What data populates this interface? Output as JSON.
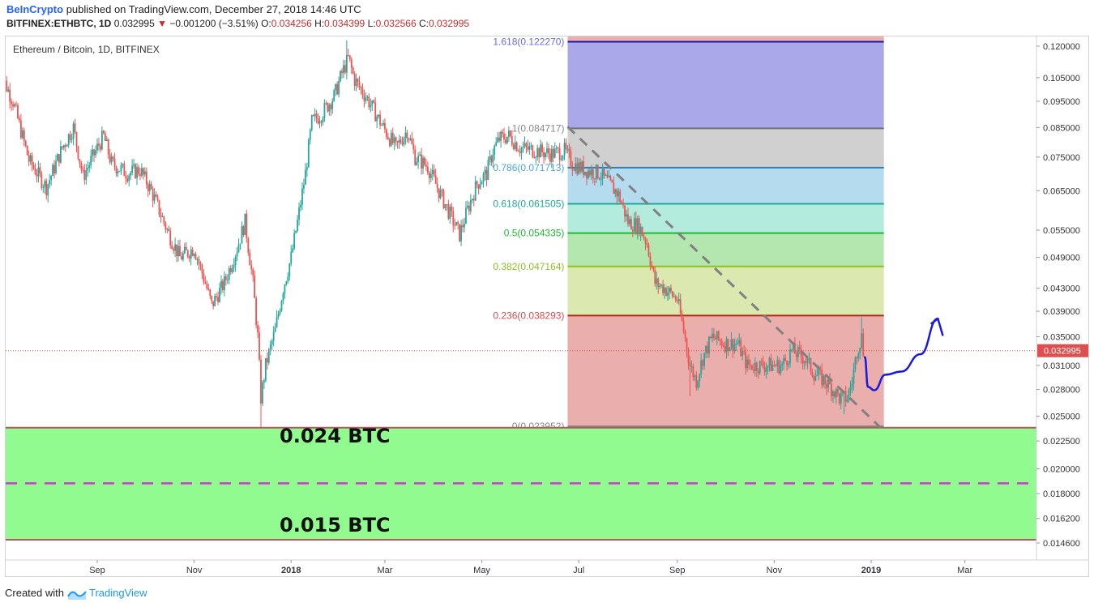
{
  "header": {
    "publisher": "BeInCrypto",
    "published_text": "published on TradingView.com, December 27, 2018 14:46 UTC",
    "symbol": "BITFINEX:ETHBTC, 1D",
    "last": "0.032995",
    "change": "−0.001200 (−3.51%)",
    "open_label": "O:",
    "open": "0.034256",
    "high_label": "H:",
    "high": "0.034399",
    "low_label": "L:",
    "low": "0.032566",
    "close_label": "C:",
    "close": "0.032995"
  },
  "footer": {
    "created_with": "Created with",
    "brand": "TradingView"
  },
  "chart_data": {
    "type": "candlestick",
    "title": "Ethereum / Bitcoin, 1D, BITFINEX",
    "x_tick_labels": [
      "Sep",
      "Nov",
      "2018",
      "Mar",
      "May",
      "Jul",
      "Sep",
      "Nov",
      "2019",
      "Mar"
    ],
    "y_scale": "log",
    "y_range": [
      0.0138,
      0.128
    ],
    "y_tick_labels": [
      "0.120000",
      "0.105000",
      "0.095000",
      "0.085000",
      "0.075000",
      "0.065000",
      "0.055000",
      "0.049000",
      "0.043000",
      "0.039000",
      "0.035000",
      "0.031000",
      "0.028000",
      "0.025000",
      "0.022500",
      "0.020000",
      "0.018000",
      "0.016200",
      "0.014600"
    ],
    "y_tick_values": [
      0.12,
      0.105,
      0.095,
      0.085,
      0.075,
      0.065,
      0.055,
      0.049,
      0.043,
      0.039,
      0.035,
      0.031,
      0.028,
      0.025,
      0.0225,
      0.02,
      0.018,
      0.0162,
      0.0146
    ],
    "last_price_label": "0.032995",
    "last_price": 0.032995,
    "price_path": [
      [
        "2017-07-01",
        0.109
      ],
      [
        "2017-07-10",
        0.095
      ],
      [
        "2017-07-20",
        0.074
      ],
      [
        "2017-07-31",
        0.066
      ],
      [
        "2017-08-10",
        0.078
      ],
      [
        "2017-08-17",
        0.085
      ],
      [
        "2017-08-23",
        0.069
      ],
      [
        "2017-09-01",
        0.078
      ],
      [
        "2017-09-05",
        0.082
      ],
      [
        "2017-09-10",
        0.073
      ],
      [
        "2017-09-20",
        0.07
      ],
      [
        "2017-09-28",
        0.071
      ],
      [
        "2017-10-05",
        0.065
      ],
      [
        "2017-10-15",
        0.055
      ],
      [
        "2017-10-23",
        0.049
      ],
      [
        "2017-11-01",
        0.051
      ],
      [
        "2017-11-08",
        0.044
      ],
      [
        "2017-11-12",
        0.04
      ],
      [
        "2017-11-20",
        0.044
      ],
      [
        "2017-11-28",
        0.051
      ],
      [
        "2017-12-03",
        0.057
      ],
      [
        "2017-12-08",
        0.044
      ],
      [
        "2017-12-11",
        0.035
      ],
      [
        "2017-12-13",
        0.027
      ],
      [
        "2017-12-16",
        0.031
      ],
      [
        "2017-12-22",
        0.036
      ],
      [
        "2017-12-27",
        0.043
      ],
      [
        "2018-01-01",
        0.049
      ],
      [
        "2018-01-05",
        0.057
      ],
      [
        "2018-01-10",
        0.07
      ],
      [
        "2018-01-14",
        0.087
      ],
      [
        "2018-01-20",
        0.09
      ],
      [
        "2018-01-28",
        0.097
      ],
      [
        "2018-02-02",
        0.107
      ],
      [
        "2018-02-06",
        0.114
      ],
      [
        "2018-02-10",
        0.104
      ],
      [
        "2018-02-18",
        0.096
      ],
      [
        "2018-02-28",
        0.085
      ],
      [
        "2018-03-08",
        0.078
      ],
      [
        "2018-03-15",
        0.084
      ],
      [
        "2018-03-20",
        0.075
      ],
      [
        "2018-03-28",
        0.072
      ],
      [
        "2018-04-05",
        0.064
      ],
      [
        "2018-04-12",
        0.058
      ],
      [
        "2018-04-17",
        0.054
      ],
      [
        "2018-04-22",
        0.06
      ],
      [
        "2018-04-28",
        0.067
      ],
      [
        "2018-05-04",
        0.07
      ],
      [
        "2018-05-08",
        0.077
      ],
      [
        "2018-05-12",
        0.081
      ],
      [
        "2018-05-18",
        0.082
      ],
      [
        "2018-05-25",
        0.078
      ],
      [
        "2018-06-05",
        0.077
      ],
      [
        "2018-06-14",
        0.076
      ],
      [
        "2018-06-22",
        0.077
      ],
      [
        "2018-06-27",
        0.073
      ],
      [
        "2018-07-05",
        0.071
      ],
      [
        "2018-07-14",
        0.07
      ],
      [
        "2018-07-20",
        0.067
      ],
      [
        "2018-07-26",
        0.064
      ],
      [
        "2018-08-01",
        0.057
      ],
      [
        "2018-08-08",
        0.056
      ],
      [
        "2018-08-13",
        0.052
      ],
      [
        "2018-08-18",
        0.044
      ],
      [
        "2018-08-24",
        0.043
      ],
      [
        "2018-09-01",
        0.041
      ],
      [
        "2018-09-05",
        0.036
      ],
      [
        "2018-09-09",
        0.031
      ],
      [
        "2018-09-13",
        0.029
      ],
      [
        "2018-09-17",
        0.032
      ],
      [
        "2018-09-23",
        0.035
      ],
      [
        "2018-10-01",
        0.034
      ],
      [
        "2018-10-09",
        0.034
      ],
      [
        "2018-10-15",
        0.031
      ],
      [
        "2018-10-28",
        0.031
      ],
      [
        "2018-11-06",
        0.031
      ],
      [
        "2018-11-12",
        0.033
      ],
      [
        "2018-11-20",
        0.032
      ],
      [
        "2018-11-26",
        0.03
      ],
      [
        "2018-12-03",
        0.029
      ],
      [
        "2018-12-08",
        0.028
      ],
      [
        "2018-12-12",
        0.027
      ],
      [
        "2018-12-17",
        0.027
      ],
      [
        "2018-12-20",
        0.029
      ],
      [
        "2018-12-23",
        0.033
      ],
      [
        "2018-12-26",
        0.035
      ],
      [
        "2018-12-27",
        0.033
      ]
    ],
    "price_extremes": [
      {
        "date": "2017-12-13",
        "low": 0.0239
      },
      {
        "date": "2018-02-05",
        "high": 0.123
      },
      {
        "date": "2018-09-09",
        "low": 0.0272
      },
      {
        "date": "2018-12-15",
        "low": 0.0252
      },
      {
        "date": "2018-12-26",
        "high": 0.038
      }
    ],
    "colors": {
      "up": "#26a69a",
      "down": "#ef5350"
    },
    "fibonacci": {
      "start_date": "2018-06-24",
      "end_date": "2019-01-09",
      "levels": [
        {
          "label": "1.618(0.122270)",
          "ratio": 1.618,
          "price": 0.12227,
          "line_color": "#1a1aa0",
          "label_color": "#6a6ad8"
        },
        {
          "label": "1(0.084717)",
          "ratio": 1.0,
          "price": 0.084717,
          "line_color": "#6f6f7a",
          "label_color": "#888888",
          "fill_above": "#aba8ea"
        },
        {
          "label": "0.786(0.071713)",
          "ratio": 0.786,
          "price": 0.071713,
          "line_color": "#2f7fb8",
          "label_color": "#4aa3d9",
          "fill_above": "#d0d0d0"
        },
        {
          "label": "0.618(0.061505)",
          "ratio": 0.618,
          "price": 0.061505,
          "line_color": "#1aa89a",
          "label_color": "#1aa89a",
          "fill_above": "#b4dbee"
        },
        {
          "label": "0.5(0.054335)",
          "ratio": 0.5,
          "price": 0.054335,
          "line_color": "#1fb832",
          "label_color": "#1fb832",
          "fill_above": "#b3ebdd"
        },
        {
          "label": "0.382(0.047164)",
          "ratio": 0.382,
          "price": 0.047164,
          "line_color": "#8cbf26",
          "label_color": "#8cbf26",
          "fill_above": "#b4e6b0"
        },
        {
          "label": "0.236(0.038293)",
          "ratio": 0.236,
          "price": 0.038293,
          "line_color": "#b22b18",
          "label_color": "#d84a4a",
          "fill_above": "#dbe8b0"
        },
        {
          "label": "0(0.023952)",
          "ratio": 0,
          "price": 0.023952,
          "line_color": "#888888",
          "label_color": "#888888",
          "fill_above": "#eaaeac"
        }
      ],
      "top_fill": "#eaaeac"
    },
    "support_zone": {
      "upper": 0.0238,
      "lower": 0.0148,
      "mid": 0.0188,
      "fill": "#92fb90",
      "mid_line_color": "#d433d4",
      "upper_label": "0.024 BTC",
      "lower_label": "0.015 BTC"
    },
    "trendline": {
      "start": [
        "2018-06-24",
        0.0853
      ],
      "end": [
        "2019-01-07",
        0.0238
      ],
      "style": "dashed",
      "color": "#808080"
    },
    "projection_arrow": {
      "color": "#1a1adc",
      "path": [
        [
          "2018-12-28",
          0.0321
        ],
        [
          "2018-12-30",
          0.0283
        ],
        [
          "2019-01-03",
          0.0279
        ],
        [
          "2019-01-10",
          0.0298
        ],
        [
          "2019-01-20",
          0.0302
        ],
        [
          "2019-02-01",
          0.0325
        ],
        [
          "2019-02-12",
          0.0378
        ]
      ],
      "head_left": [
        "2019-02-08",
        0.0378
      ],
      "head_right": [
        "2019-02-15",
        0.037
      ]
    }
  }
}
